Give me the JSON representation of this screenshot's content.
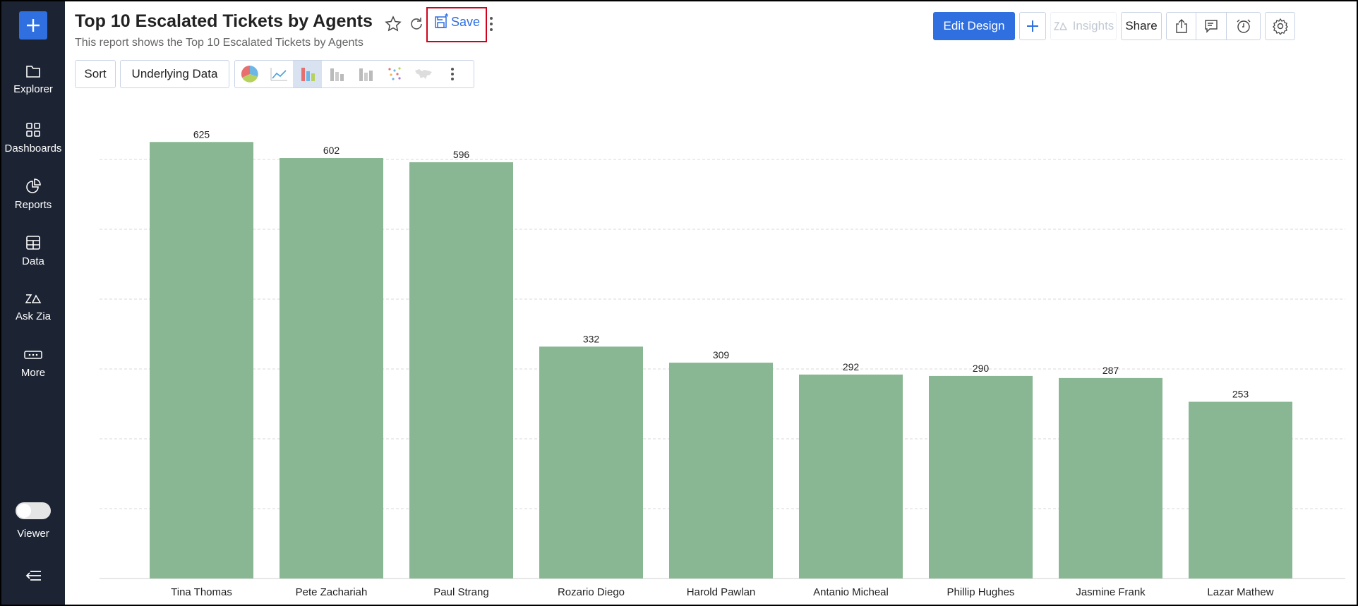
{
  "sidebar": {
    "items": [
      {
        "label": "Explorer",
        "icon": "folder-icon"
      },
      {
        "label": "Dashboards",
        "icon": "dashboards-icon"
      },
      {
        "label": "Reports",
        "icon": "pie-chart-icon"
      },
      {
        "label": "Data",
        "icon": "table-icon"
      },
      {
        "label": "Ask Zia",
        "icon": "zia-icon"
      },
      {
        "label": "More",
        "icon": "more-icon"
      }
    ],
    "viewer_label": "Viewer",
    "viewer_toggle_on": false
  },
  "header": {
    "title": "Top 10 Escalated Tickets by Agents",
    "subtitle": "This report shows the Top 10 Escalated Tickets by Agents",
    "save_label": "Save",
    "edit_design_label": "Edit Design",
    "insights_label": "Insights",
    "share_label": "Share"
  },
  "toolbar": {
    "sort_label": "Sort",
    "underlying_data_label": "Underlying Data",
    "chart_types": [
      "pie",
      "line",
      "bar",
      "stacked-bar",
      "grouped-bar",
      "scatter",
      "map"
    ],
    "active_chart_type": "bar"
  },
  "colors": {
    "bar": "#8ab793",
    "accent": "#2f6fe0",
    "sidebar": "#1c2333",
    "highlight": "#d0021b"
  },
  "chart_data": {
    "type": "bar",
    "categories": [
      "Tina Thomas",
      "Pete Zachariah",
      "Paul Strang",
      "Rozario Diego",
      "Harold Pawlan",
      "Antanio Micheal",
      "Phillip Hughes",
      "Jasmine Frank",
      "Lazar Mathew"
    ],
    "values": [
      625,
      602,
      596,
      332,
      309,
      292,
      290,
      287,
      253
    ],
    "data_labels": [
      "625",
      "602",
      "596",
      "332",
      "309",
      "292",
      "290",
      "287",
      "253"
    ],
    "ylim": [
      0,
      700
    ],
    "grid": true,
    "grid_step": 100
  }
}
